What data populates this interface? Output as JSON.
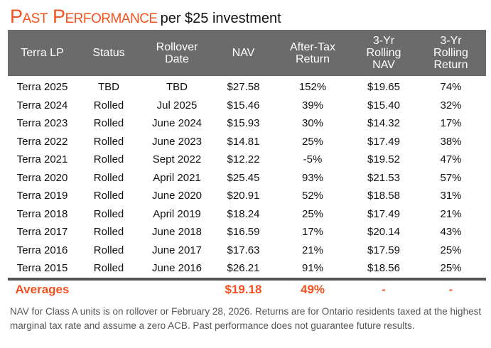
{
  "title": {
    "main": "Past Performance",
    "sub": "per $25 investment"
  },
  "colors": {
    "accent": "#f4511e",
    "header_bg": "#6b6b6b"
  },
  "columns": [
    [
      "Terra LP"
    ],
    [
      "Status"
    ],
    [
      "Rollover",
      "Date"
    ],
    [
      "NAV"
    ],
    [
      "After-Tax",
      "Return"
    ],
    [
      "3-Yr",
      "Rolling",
      "NAV"
    ],
    [
      "3-Yr",
      "Rolling",
      "Return"
    ]
  ],
  "rows": [
    [
      "Terra 2025",
      "TBD",
      "TBD",
      "$27.58",
      "152%",
      "$19.65",
      "74%"
    ],
    [
      "Terra 2024",
      "Rolled",
      "Jul 2025",
      "$15.46",
      "39%",
      "$15.40",
      "32%"
    ],
    [
      "Terra 2023",
      "Rolled",
      "June 2024",
      "$15.93",
      "30%",
      "$14.32",
      "17%"
    ],
    [
      "Terra 2022",
      "Rolled",
      "June 2023",
      "$14.81",
      "25%",
      "$17.49",
      "38%"
    ],
    [
      "Terra 2021",
      "Rolled",
      "Sept 2022",
      "$12.22",
      "-5%",
      "$19.52",
      "47%"
    ],
    [
      "Terra 2020",
      "Rolled",
      "April 2021",
      "$25.45",
      "93%",
      "$21.53",
      "57%"
    ],
    [
      "Terra 2019",
      "Rolled",
      "June 2020",
      "$20.91",
      "52%",
      "$18.58",
      "31%"
    ],
    [
      "Terra 2018",
      "Rolled",
      "April 2019",
      "$18.24",
      "25%",
      "$17.49",
      "21%"
    ],
    [
      "Terra 2017",
      "Rolled",
      "June 2018",
      "$16.59",
      "17%",
      "$20.14",
      "43%"
    ],
    [
      "Terra 2016",
      "Rolled",
      "June 2017",
      "$17.63",
      "21%",
      "$17.59",
      "25%"
    ],
    [
      "Terra 2015",
      "Rolled",
      "June 2016",
      "$26.21",
      "91%",
      "$18.56",
      "25%"
    ]
  ],
  "averages": {
    "label": "Averages",
    "nav": "$19.18",
    "return": "49%",
    "rolling_nav": "-",
    "rolling_return": "-"
  },
  "footnote": "NAV for Class A units is on rollover or February 28, 2026. Returns are for Ontario residents taxed at the highest marginal tax rate and assume a zero ACB. Past performance does not guarantee future results."
}
